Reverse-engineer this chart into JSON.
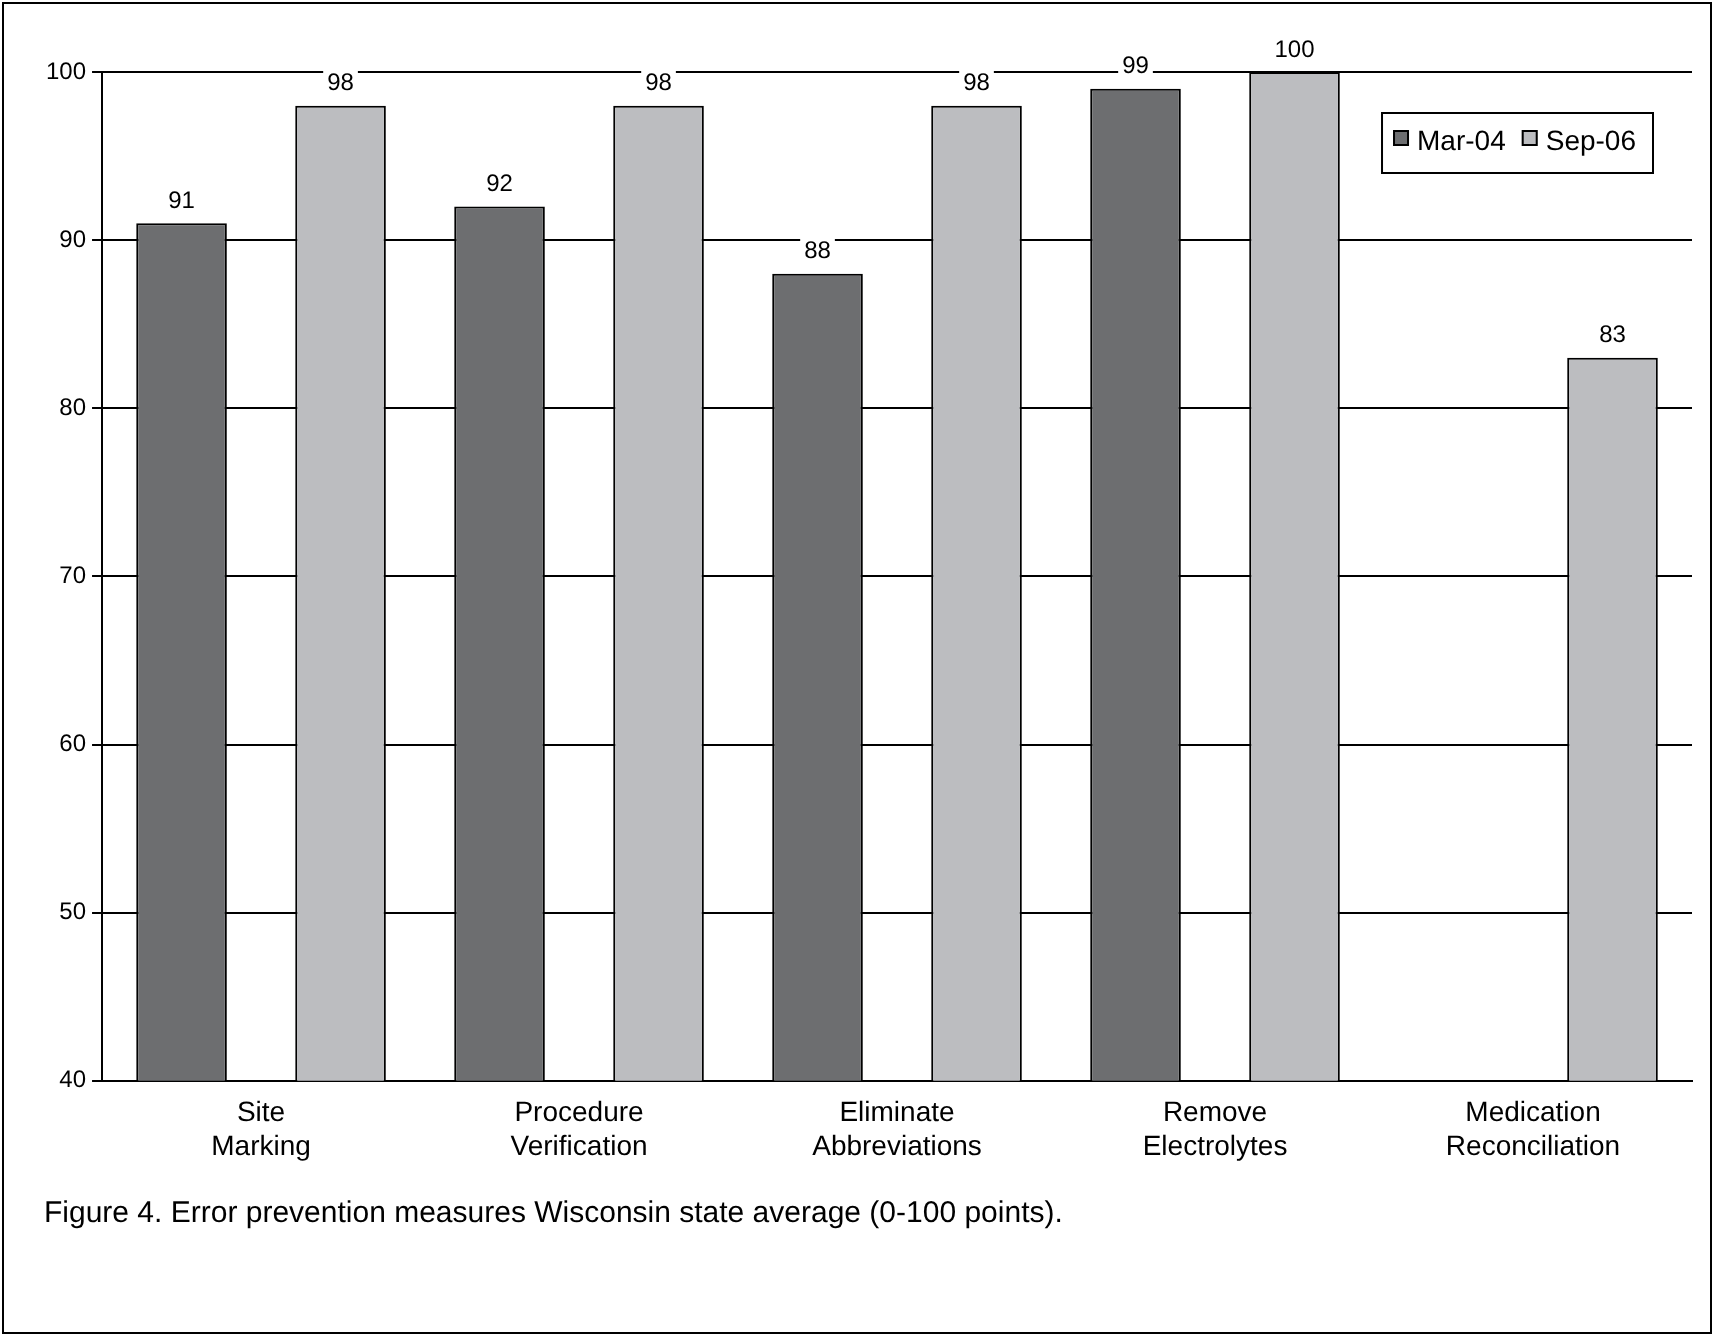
{
  "chart_data": {
    "type": "bar",
    "categories": [
      "Site Marking",
      "Procedure Verification",
      "Eliminate Abbreviations",
      "Remove Electrolytes",
      "Medication Reconciliation"
    ],
    "series": [
      {
        "name": "Mar-04",
        "color": "#6d6e70",
        "values": [
          91,
          92,
          88,
          99,
          null
        ]
      },
      {
        "name": "Sep-06",
        "color": "#bcbdc0",
        "values": [
          98,
          98,
          98,
          100,
          83
        ]
      }
    ],
    "ylim": [
      40,
      100
    ],
    "yticks": [
      40,
      50,
      60,
      70,
      80,
      90,
      100
    ],
    "grid": "y",
    "legend": "top right",
    "data_labels": true,
    "annotations": [
      "Figure 4.  Error prevention measures Wisconsin state average (0-100 points)."
    ]
  }
}
